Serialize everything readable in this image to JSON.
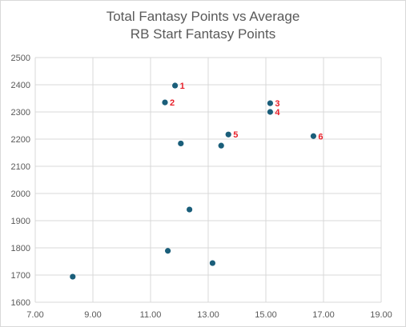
{
  "chart_data": {
    "type": "scatter",
    "title_line1": "Total Fantasy Points vs Average",
    "title_line2": "RB Start  Fantasy Points",
    "xlabel": "",
    "ylabel": "",
    "xlim": [
      7,
      19
    ],
    "ylim": [
      1600,
      2500
    ],
    "x_ticks": [
      "7.00",
      "9.00",
      "11.00",
      "13.00",
      "15.00",
      "17.00",
      "19.00"
    ],
    "y_ticks": [
      "1600",
      "1700",
      "1800",
      "1900",
      "2000",
      "2100",
      "2200",
      "2300",
      "2400",
      "2500"
    ],
    "grid": true,
    "marker_color": "#1a5e7a",
    "label_color": "#e8202a",
    "points": [
      {
        "x": 11.85,
        "y": 2397,
        "label": "1"
      },
      {
        "x": 11.5,
        "y": 2335,
        "label": "2"
      },
      {
        "x": 15.15,
        "y": 2332,
        "label": "3"
      },
      {
        "x": 15.15,
        "y": 2300,
        "label": "4"
      },
      {
        "x": 13.7,
        "y": 2217,
        "label": "5"
      },
      {
        "x": 16.65,
        "y": 2211,
        "label": "6"
      },
      {
        "x": 12.05,
        "y": 2184,
        "label": ""
      },
      {
        "x": 13.45,
        "y": 2176,
        "label": ""
      },
      {
        "x": 12.35,
        "y": 1941,
        "label": ""
      },
      {
        "x": 11.6,
        "y": 1789,
        "label": ""
      },
      {
        "x": 13.15,
        "y": 1744,
        "label": ""
      },
      {
        "x": 8.3,
        "y": 1694,
        "label": ""
      }
    ]
  }
}
